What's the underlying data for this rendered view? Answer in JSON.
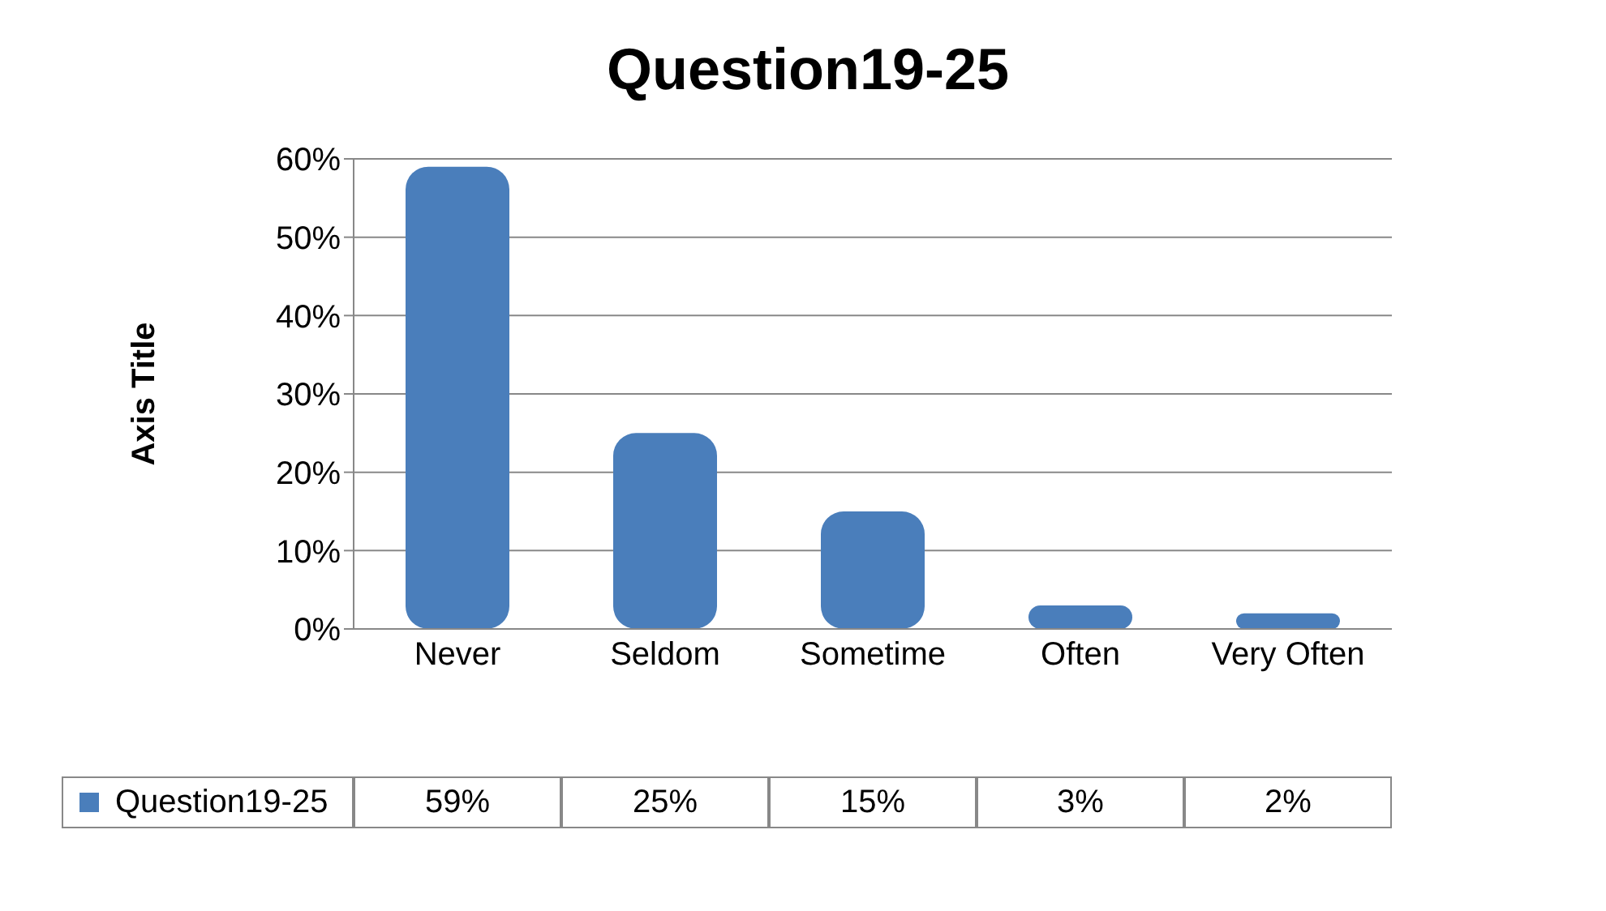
{
  "chart_data": {
    "type": "bar",
    "title": "Question19-25",
    "ylabel": "Axis Title",
    "categories": [
      "Never",
      "Seldom",
      "Sometime",
      "Often",
      "Very Often"
    ],
    "series": [
      {
        "name": "Question19-25",
        "color": "#4a7ebb",
        "values": [
          59,
          25,
          15,
          3,
          2
        ],
        "value_labels": [
          "59%",
          "25%",
          "15%",
          "3%",
          "2%"
        ]
      }
    ],
    "ylim": [
      0,
      60
    ],
    "yticks": [
      {
        "value": 0,
        "label": "0%"
      },
      {
        "value": 10,
        "label": "10%"
      },
      {
        "value": 20,
        "label": "20%"
      },
      {
        "value": 30,
        "label": "30%"
      },
      {
        "value": 40,
        "label": "40%"
      },
      {
        "value": 50,
        "label": "50%"
      },
      {
        "value": 60,
        "label": "60%"
      }
    ],
    "grid": "y",
    "legend": "bottom"
  }
}
